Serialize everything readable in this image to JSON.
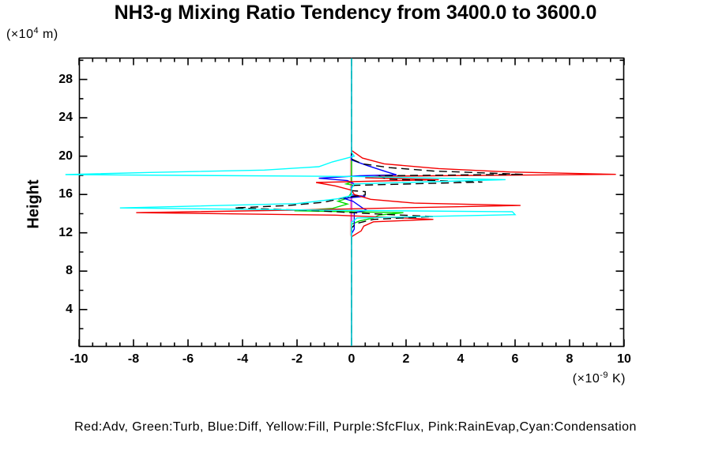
{
  "title": "NH3-g Mixing Ratio Tendency from 3400.0 to 3600.0",
  "legend_text": "Red:Adv, Green:Turb, Blue:Diff, Yellow:Fill, Purple:SfcFlux, Pink:RainEvap,Cyan:Condensation",
  "y_axis": {
    "label": "Height",
    "unit_prefix": "(×10",
    "unit_sup": "4",
    "unit_suffix": " m)",
    "tick_values": [
      4,
      8,
      12,
      16,
      20,
      24,
      28
    ],
    "tick_labels": [
      "4",
      "8",
      "12",
      "16",
      "20",
      "24",
      "28"
    ],
    "minor_step": 2,
    "range": [
      0,
      30.2
    ]
  },
  "x_axis": {
    "unit_prefix": "(×10",
    "unit_sup": "-9",
    "unit_suffix": " K)",
    "tick_values": [
      -10,
      -8,
      -6,
      -4,
      -2,
      0,
      2,
      4,
      6,
      8,
      10
    ],
    "tick_labels": [
      "-10",
      "-8",
      "-6",
      "-4",
      "-2",
      "0",
      "2",
      "4",
      "6",
      "8",
      "10"
    ],
    "minor_step": 0.5,
    "range": [
      -10,
      10
    ]
  },
  "colors": {
    "axis": "#000000",
    "red": "#f40000",
    "green": "#00dc00",
    "blue": "#0000ff",
    "yellow": "#f0f000",
    "purple": "#c000f0",
    "pink": "#ffb0b0",
    "cyan": "#00ffff",
    "black": "#000000"
  },
  "chart_data": {
    "type": "line",
    "orientation": "vertical-profile (x = tendency value, y = height)",
    "title": "NH3-g Mixing Ratio Tendency from 3400.0 to 3600.0",
    "xlabel": "(×10^-9 K)",
    "ylabel": "Height (×10^4 m)",
    "xlim": [
      -10,
      10
    ],
    "ylim": [
      0,
      30.2
    ],
    "grid": false,
    "zero_line": {
      "x": 0,
      "color": "#00ffff"
    },
    "series": [
      {
        "name": "Fill",
        "legend_color_word": "Yellow",
        "color": "#f0f000",
        "dashed": false,
        "points": [
          [
            30.2,
            0
          ],
          [
            0.2,
            0
          ]
        ]
      },
      {
        "name": "SfcFlux",
        "legend_color_word": "Purple",
        "color": "#c000f0",
        "dashed": false,
        "points": [
          [
            30.2,
            0
          ],
          [
            0.2,
            0
          ]
        ]
      },
      {
        "name": "RainEvap",
        "legend_color_word": "Pink",
        "color": "#ffb0b0",
        "dashed": false,
        "points": [
          [
            30.2,
            0
          ],
          [
            20.3,
            0
          ],
          [
            19.9,
            -0.04
          ],
          [
            11.8,
            -0.04
          ],
          [
            11.5,
            0
          ],
          [
            0.2,
            0
          ]
        ]
      },
      {
        "name": "Turb",
        "legend_color_word": "Green",
        "color": "#00dc00",
        "dashed": false,
        "points": [
          [
            30.2,
            0
          ],
          [
            17.3,
            0
          ],
          [
            17.1,
            -0.2
          ],
          [
            16.95,
            0.1
          ],
          [
            16.75,
            0
          ],
          [
            16.2,
            0
          ],
          [
            15.6,
            -0.15
          ],
          [
            15.3,
            -0.5
          ],
          [
            15.0,
            -0.15
          ],
          [
            14.55,
            -0.7
          ],
          [
            14.3,
            -2.1
          ],
          [
            14.1,
            1.9
          ],
          [
            13.85,
            1.0
          ],
          [
            13.55,
            0.8
          ],
          [
            13.25,
            0.3
          ],
          [
            12.9,
            0
          ],
          [
            0.2,
            0
          ]
        ]
      },
      {
        "name": "Diff",
        "legend_color_word": "Blue",
        "color": "#0000ff",
        "dashed": false,
        "points": [
          [
            30.2,
            0
          ],
          [
            19.6,
            0
          ],
          [
            19.0,
            0.6
          ],
          [
            18.35,
            1.3
          ],
          [
            18.05,
            1.65
          ],
          [
            17.95,
            0.3
          ],
          [
            17.7,
            -1.2
          ],
          [
            17.45,
            -0.15
          ],
          [
            17.1,
            0.1
          ],
          [
            16.7,
            0
          ],
          [
            15.95,
            0
          ],
          [
            15.8,
            0.5
          ],
          [
            15.6,
            -0.3
          ],
          [
            15.3,
            0.05
          ],
          [
            14.6,
            0.4
          ],
          [
            14.35,
            0.55
          ],
          [
            14.1,
            0.1
          ],
          [
            12.4,
            0.1
          ],
          [
            11.9,
            0
          ],
          [
            0.2,
            0
          ]
        ]
      },
      {
        "name": "Adv",
        "legend_color_word": "Red",
        "color": "#f40000",
        "dashed": false,
        "points": [
          [
            30.2,
            0
          ],
          [
            20.6,
            0
          ],
          [
            19.8,
            0.4
          ],
          [
            19.2,
            1.2
          ],
          [
            18.7,
            3.2
          ],
          [
            18.35,
            5.8
          ],
          [
            18.1,
            9.7
          ],
          [
            17.9,
            1.0
          ],
          [
            17.75,
            0.5
          ],
          [
            17.55,
            3.2
          ],
          [
            17.25,
            -1.3
          ],
          [
            16.9,
            -0.6
          ],
          [
            16.45,
            0
          ],
          [
            16.0,
            0.1
          ],
          [
            15.5,
            0.7
          ],
          [
            15.1,
            2.3
          ],
          [
            14.85,
            6.2
          ],
          [
            14.55,
            0.8
          ],
          [
            14.35,
            -2.5
          ],
          [
            14.1,
            -7.9
          ],
          [
            13.85,
            -0.6
          ],
          [
            13.6,
            1.5
          ],
          [
            13.4,
            3.0
          ],
          [
            13.15,
            0.8
          ],
          [
            12.7,
            0.45
          ],
          [
            12.2,
            0.35
          ],
          [
            11.6,
            0
          ],
          [
            0.2,
            0
          ]
        ]
      },
      {
        "name": "black-dashed",
        "legend_color_word": "",
        "color": "#000000",
        "dashed": true,
        "points": [
          [
            30.2,
            0
          ],
          [
            19.7,
            0
          ],
          [
            19.2,
            0.4
          ],
          [
            18.8,
            1.4
          ],
          [
            18.45,
            3.0
          ],
          [
            18.1,
            6.3
          ],
          [
            17.95,
            1.0
          ],
          [
            17.6,
            1.3
          ],
          [
            17.3,
            4.8
          ],
          [
            16.95,
            0
          ],
          [
            16.4,
            0
          ],
          [
            16.3,
            0.5
          ],
          [
            15.95,
            0.5
          ],
          [
            15.7,
            -0.2
          ],
          [
            15.2,
            -1.0
          ],
          [
            14.85,
            -2.3
          ],
          [
            14.6,
            -4.3
          ],
          [
            14.3,
            -1.2
          ],
          [
            14.0,
            0.7
          ],
          [
            13.7,
            3.0
          ],
          [
            13.4,
            0.8
          ],
          [
            12.95,
            0.15
          ],
          [
            12.5,
            0
          ],
          [
            0.2,
            0
          ]
        ]
      },
      {
        "name": "Condensation",
        "legend_color_word": "Cyan",
        "color": "#00ffff",
        "dashed": false,
        "points": [
          [
            30.2,
            0
          ],
          [
            20.4,
            0
          ],
          [
            20.0,
            0.1
          ],
          [
            19.4,
            -0.7
          ],
          [
            18.9,
            -1.2
          ],
          [
            18.55,
            -3.2
          ],
          [
            18.3,
            -7.4
          ],
          [
            18.08,
            -10.5
          ],
          [
            17.88,
            0.2
          ],
          [
            17.55,
            5.65
          ],
          [
            17.1,
            0.1
          ],
          [
            16.6,
            0
          ],
          [
            15.9,
            0
          ],
          [
            15.55,
            -0.5
          ],
          [
            15.05,
            -2.0
          ],
          [
            14.6,
            -8.5
          ],
          [
            14.35,
            -0.6
          ],
          [
            14.2,
            5.9
          ],
          [
            13.9,
            6.0
          ],
          [
            13.55,
            0.2
          ],
          [
            13.1,
            0
          ],
          [
            0.2,
            0
          ]
        ]
      }
    ]
  }
}
